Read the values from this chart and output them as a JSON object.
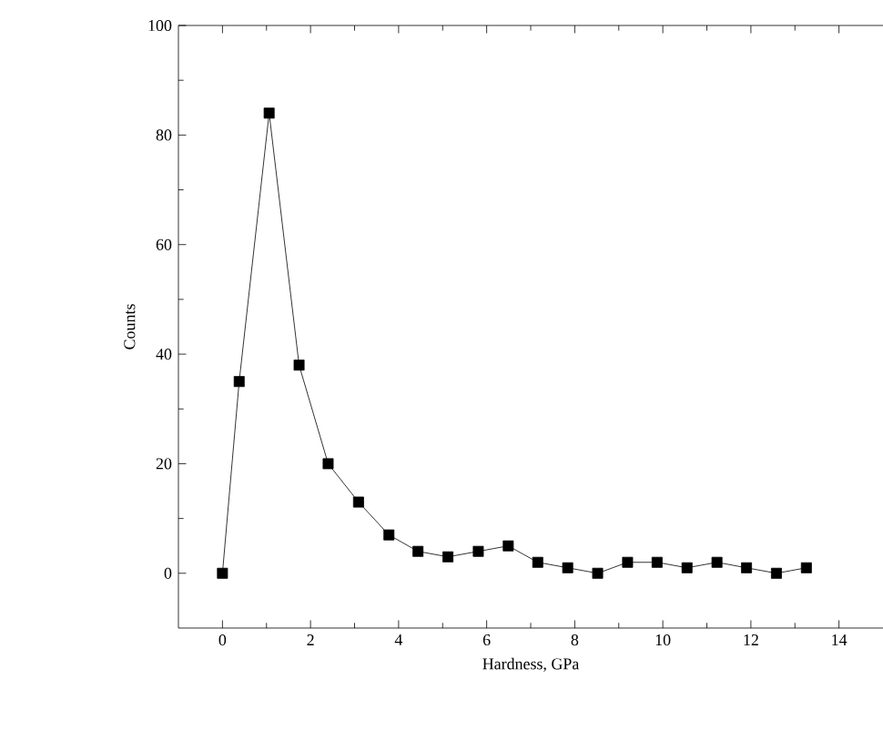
{
  "chart_data": {
    "type": "line",
    "xlabel": "Hardness, GPa",
    "ylabel": "Counts",
    "x": [
      0,
      0.38,
      1.06,
      1.74,
      2.4,
      3.09,
      3.78,
      4.44,
      5.12,
      5.81,
      6.49,
      7.16,
      7.84,
      8.52,
      9.2,
      9.87,
      10.55,
      11.23,
      11.9,
      12.58,
      13.26
    ],
    "series": [
      {
        "color": "#000000",
        "values": [
          0,
          35,
          84,
          38,
          20,
          13,
          7,
          4,
          3,
          4,
          5,
          2,
          1,
          0,
          2,
          2,
          1,
          2,
          1,
          0,
          1
        ]
      }
    ],
    "xlim": [
      -1,
      15
    ],
    "ylim": [
      -10,
      100
    ],
    "xticks": [
      0,
      2,
      4,
      6,
      8,
      10,
      12,
      14
    ],
    "yticks": [
      0,
      20,
      40,
      60,
      80,
      100
    ],
    "marker": "square",
    "line_style": "solid"
  }
}
